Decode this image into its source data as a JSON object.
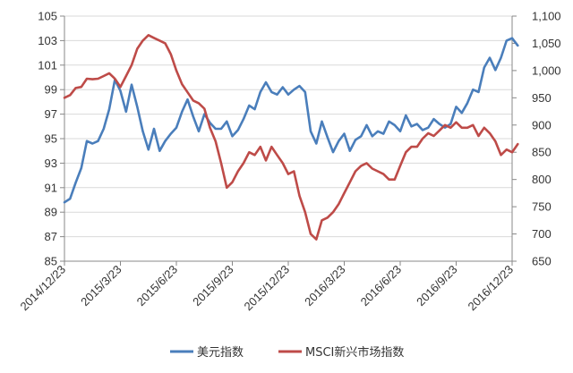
{
  "chart_data": {
    "type": "line",
    "title": "",
    "xlabel": "",
    "ylabel": "",
    "x_tick_labels": [
      "2014/12/23",
      "2015/3/23",
      "2015/6/23",
      "2015/9/23",
      "2015/12/23",
      "2016/3/23",
      "2016/6/23",
      "2016/9/23",
      "2016/12/23"
    ],
    "left_axis": {
      "ylim": [
        85,
        105
      ],
      "tick_labels": [
        "85",
        "87",
        "89",
        "91",
        "93",
        "95",
        "97",
        "99",
        "101",
        "103",
        "105"
      ]
    },
    "right_axis": {
      "ylim": [
        650,
        1100
      ],
      "tick_labels": [
        "650",
        "700",
        "750",
        "800",
        "850",
        "900",
        "950",
        "1,000",
        "1,050",
        "1,100"
      ]
    },
    "grid": "horizontal",
    "legend_position": "bottom",
    "series": [
      {
        "name": "美元指数",
        "axis": "left",
        "color": "#4a7ebb",
        "x": [
          0,
          0.1,
          0.2,
          0.3,
          0.4,
          0.5,
          0.6,
          0.7,
          0.8,
          0.9,
          1.0,
          1.1,
          1.2,
          1.3,
          1.4,
          1.5,
          1.6,
          1.7,
          1.8,
          1.9,
          2.0,
          2.1,
          2.2,
          2.3,
          2.4,
          2.5,
          2.6,
          2.7,
          2.8,
          2.9,
          3.0,
          3.1,
          3.2,
          3.3,
          3.4,
          3.5,
          3.6,
          3.7,
          3.8,
          3.9,
          4.0,
          4.1,
          4.2,
          4.3,
          4.4,
          4.5,
          4.6,
          4.7,
          4.8,
          4.9,
          5.0,
          5.1,
          5.2,
          5.3,
          5.4,
          5.5,
          5.6,
          5.7,
          5.8,
          5.9,
          6.0,
          6.1,
          6.2,
          6.3,
          6.4,
          6.5,
          6.6,
          6.7,
          6.8,
          6.9,
          7.0,
          7.1,
          7.2,
          7.3,
          7.4,
          7.5,
          7.6,
          7.7,
          7.8,
          7.9,
          8.0,
          8.1
        ],
        "values": [
          89.8,
          90.1,
          91.4,
          92.6,
          94.8,
          94.6,
          94.8,
          95.8,
          97.4,
          99.8,
          98.9,
          97.2,
          99.4,
          97.6,
          95.6,
          94.1,
          95.8,
          94.0,
          94.8,
          95.4,
          95.9,
          97.2,
          98.2,
          96.8,
          95.6,
          97.0,
          96.3,
          95.8,
          95.8,
          96.4,
          95.2,
          95.7,
          96.6,
          97.7,
          97.4,
          98.8,
          99.6,
          98.8,
          98.6,
          99.2,
          98.6,
          99.0,
          99.3,
          98.8,
          95.6,
          94.6,
          96.4,
          95.1,
          93.9,
          94.8,
          95.4,
          94.0,
          94.9,
          95.2,
          96.1,
          95.2,
          95.6,
          95.4,
          96.4,
          96.1,
          95.6,
          96.9,
          96.0,
          96.2,
          95.7,
          95.9,
          96.6,
          96.2,
          95.9,
          96.2,
          97.6,
          97.1,
          97.9,
          99.0,
          98.8,
          100.8,
          101.6,
          100.6,
          101.6,
          103.0,
          103.2,
          102.6
        ]
      },
      {
        "name": "MSCI新兴市场指数",
        "axis": "right",
        "color": "#be4b48",
        "x": [
          0,
          0.1,
          0.2,
          0.3,
          0.4,
          0.5,
          0.6,
          0.7,
          0.8,
          0.9,
          1.0,
          1.1,
          1.2,
          1.3,
          1.4,
          1.5,
          1.6,
          1.7,
          1.8,
          1.9,
          2.0,
          2.1,
          2.2,
          2.3,
          2.4,
          2.5,
          2.6,
          2.7,
          2.8,
          2.9,
          3.0,
          3.1,
          3.2,
          3.3,
          3.4,
          3.5,
          3.6,
          3.7,
          3.8,
          3.9,
          4.0,
          4.1,
          4.2,
          4.3,
          4.4,
          4.5,
          4.6,
          4.7,
          4.8,
          4.9,
          5.0,
          5.1,
          5.2,
          5.3,
          5.4,
          5.5,
          5.6,
          5.7,
          5.8,
          5.9,
          6.0,
          6.1,
          6.2,
          6.3,
          6.4,
          6.5,
          6.6,
          6.7,
          6.8,
          6.9,
          7.0,
          7.1,
          7.2,
          7.3,
          7.4,
          7.5,
          7.6,
          7.7,
          7.8,
          7.9,
          8.0,
          8.1
        ],
        "values": [
          950,
          955,
          968,
          970,
          985,
          984,
          985,
          990,
          995,
          985,
          970,
          990,
          1010,
          1040,
          1055,
          1065,
          1060,
          1055,
          1050,
          1030,
          1000,
          975,
          960,
          945,
          940,
          930,
          895,
          870,
          830,
          785,
          795,
          815,
          830,
          850,
          845,
          860,
          835,
          860,
          845,
          830,
          810,
          815,
          770,
          740,
          700,
          690,
          725,
          730,
          740,
          755,
          775,
          795,
          815,
          825,
          830,
          820,
          815,
          810,
          800,
          800,
          825,
          850,
          860,
          860,
          875,
          885,
          880,
          890,
          900,
          895,
          905,
          895,
          895,
          900,
          880,
          895,
          885,
          870,
          845,
          855,
          850,
          865
        ]
      }
    ]
  },
  "legend": [
    {
      "label": "美元指数",
      "color": "#4a7ebb"
    },
    {
      "label": "MSCI新兴市场指数",
      "color": "#be4b48"
    }
  ]
}
